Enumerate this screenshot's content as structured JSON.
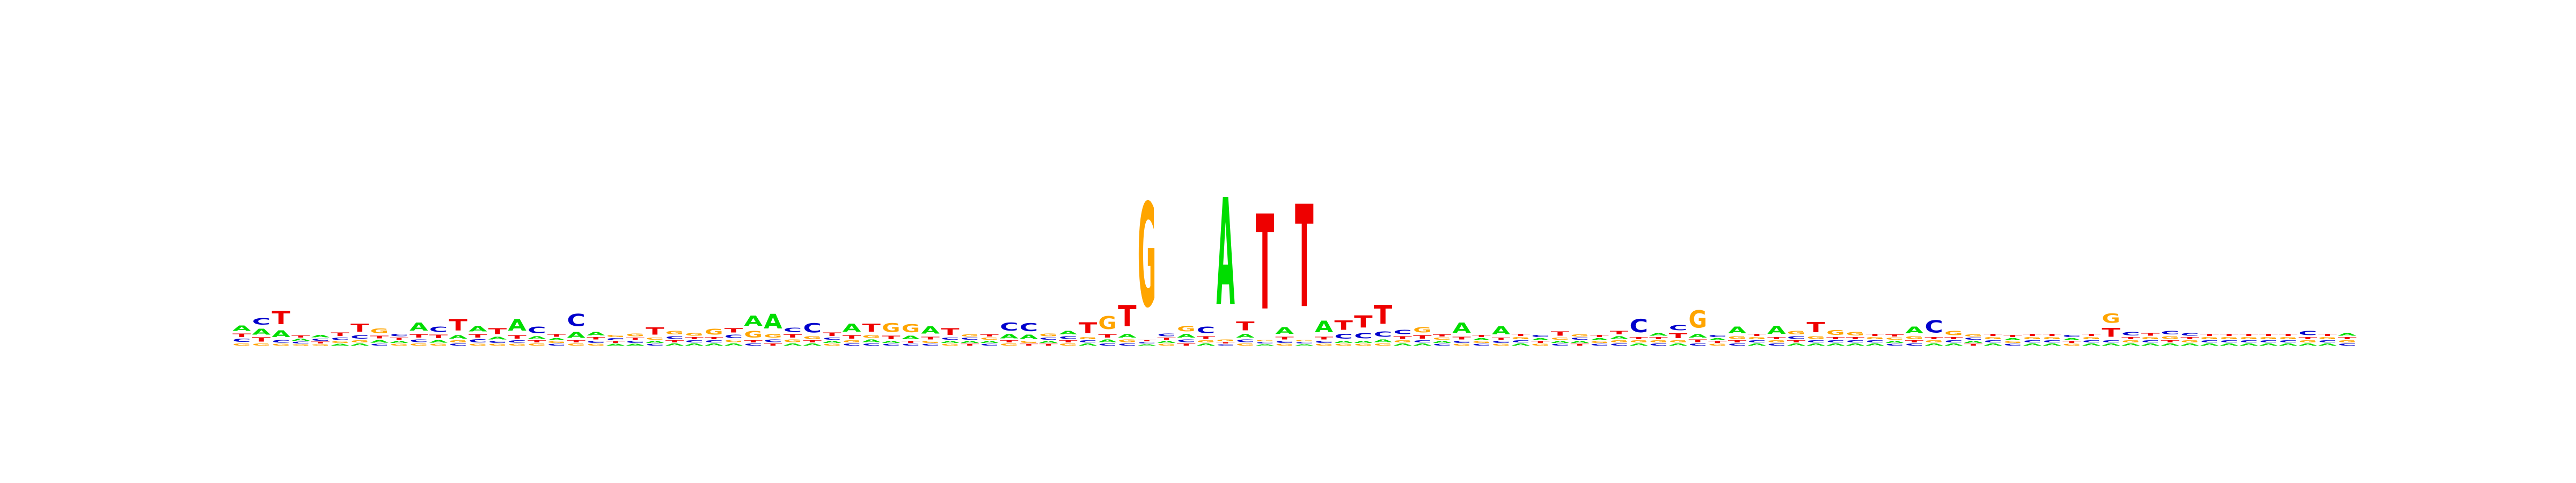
{
  "chart_data": {
    "type": "sequence-logo",
    "title": "",
    "xlabel": "",
    "ylabel": "",
    "colors": {
      "A": "#00dd00",
      "C": "#0000cc",
      "G": "#ffa500",
      "T": "#ee0000"
    },
    "positions": [
      {
        "A": 0.16,
        "C": 0.09,
        "G": 0.06,
        "T": 0.1
      },
      {
        "A": 0.18,
        "C": 0.2,
        "G": 0.06,
        "T": 0.12
      },
      {
        "A": 0.2,
        "C": 0.08,
        "G": 0.05,
        "T": 0.4
      },
      {
        "A": 0.06,
        "C": 0.05,
        "G": 0.04,
        "T": 0.06
      },
      {
        "A": 0.07,
        "C": 0.06,
        "G": 0.04,
        "T": 0.05
      },
      {
        "A": 0.05,
        "C": 0.07,
        "G": 0.05,
        "T": 0.1
      },
      {
        "A": 0.06,
        "C": 0.1,
        "G": 0.06,
        "T": 0.24
      },
      {
        "A": 0.08,
        "C": 0.05,
        "G": 0.14,
        "T": 0.08
      },
      {
        "A": 0.06,
        "C": 0.07,
        "G": 0.05,
        "T": 0.06
      },
      {
        "A": 0.24,
        "C": 0.08,
        "G": 0.06,
        "T": 0.1
      },
      {
        "A": 0.08,
        "C": 0.16,
        "G": 0.05,
        "T": 0.1
      },
      {
        "A": 0.1,
        "C": 0.06,
        "G": 0.06,
        "T": 0.34
      },
      {
        "A": 0.16,
        "C": 0.09,
        "G": 0.05,
        "T": 0.1
      },
      {
        "A": 0.08,
        "C": 0.06,
        "G": 0.05,
        "T": 0.18
      },
      {
        "A": 0.34,
        "C": 0.07,
        "G": 0.05,
        "T": 0.1
      },
      {
        "A": 0.08,
        "C": 0.2,
        "G": 0.06,
        "T": 0.06
      },
      {
        "A": 0.06,
        "C": 0.05,
        "G": 0.05,
        "T": 0.08
      },
      {
        "A": 0.18,
        "C": 0.36,
        "G": 0.06,
        "T": 0.06
      },
      {
        "A": 0.1,
        "C": 0.06,
        "G": 0.05,
        "T": 0.07
      },
      {
        "A": 0.05,
        "C": 0.06,
        "G": 0.06,
        "T": 0.05
      },
      {
        "A": 0.05,
        "C": 0.06,
        "G": 0.08,
        "T": 0.06
      },
      {
        "A": 0.06,
        "C": 0.05,
        "G": 0.06,
        "T": 0.22
      },
      {
        "A": 0.06,
        "C": 0.08,
        "G": 0.1,
        "T": 0.06
      },
      {
        "A": 0.06,
        "C": 0.06,
        "G": 0.08,
        "T": 0.06
      },
      {
        "A": 0.06,
        "C": 0.06,
        "G": 0.18,
        "T": 0.06
      },
      {
        "A": 0.06,
        "C": 0.1,
        "G": 0.07,
        "T": 0.12
      },
      {
        "A": 0.3,
        "C": 0.06,
        "G": 0.2,
        "T": 0.06
      },
      {
        "A": 0.44,
        "C": 0.08,
        "G": 0.1,
        "T": 0.06
      },
      {
        "A": 0.06,
        "C": 0.12,
        "G": 0.08,
        "T": 0.1
      },
      {
        "A": 0.06,
        "C": 0.28,
        "G": 0.08,
        "T": 0.06
      },
      {
        "A": 0.06,
        "C": 0.06,
        "G": 0.05,
        "T": 0.1
      },
      {
        "A": 0.24,
        "C": 0.06,
        "G": 0.06,
        "T": 0.1
      },
      {
        "A": 0.08,
        "C": 0.06,
        "G": 0.08,
        "T": 0.24
      },
      {
        "A": 0.06,
        "C": 0.05,
        "G": 0.26,
        "T": 0.1
      },
      {
        "A": 0.1,
        "C": 0.05,
        "G": 0.24,
        "T": 0.06
      },
      {
        "A": 0.22,
        "C": 0.05,
        "G": 0.06,
        "T": 0.08
      },
      {
        "A": 0.06,
        "C": 0.06,
        "G": 0.05,
        "T": 0.2
      },
      {
        "A": 0.06,
        "C": 0.06,
        "G": 0.06,
        "T": 0.05
      },
      {
        "A": 0.06,
        "C": 0.05,
        "G": 0.06,
        "T": 0.06
      },
      {
        "A": 0.12,
        "C": 0.24,
        "G": 0.06,
        "T": 0.06
      },
      {
        "A": 0.12,
        "C": 0.24,
        "G": 0.06,
        "T": 0.05
      },
      {
        "A": 0.06,
        "C": 0.06,
        "G": 0.08,
        "T": 0.05
      },
      {
        "A": 0.1,
        "C": 0.08,
        "G": 0.06,
        "T": 0.06
      },
      {
        "A": 0.06,
        "C": 0.06,
        "G": 0.06,
        "T": 0.32
      },
      {
        "A": 0.08,
        "C": 0.06,
        "G": 0.38,
        "T": 0.1
      },
      {
        "A": 0.1,
        "C": 0.06,
        "G": 0.08,
        "T": 0.64
      },
      {
        "A": 0.04,
        "C": 0.04,
        "G": 3.1,
        "T": 0.04
      },
      {
        "A": 0.06,
        "C": 0.08,
        "G": 0.05,
        "T": 0.06
      },
      {
        "A": 0.1,
        "C": 0.08,
        "G": 0.16,
        "T": 0.06
      },
      {
        "A": 0.06,
        "C": 0.2,
        "G": 0.06,
        "T": 0.08
      },
      {
        "A": 3.2,
        "C": 0.04,
        "G": 0.05,
        "T": 0.04
      },
      {
        "A": 0.1,
        "C": 0.08,
        "G": 0.06,
        "T": 0.26
      },
      {
        "A": 0.04,
        "C": 0.04,
        "G": 0.04,
        "T": 2.84
      },
      {
        "A": 0.2,
        "C": 0.06,
        "G": 0.05,
        "T": 0.08
      },
      {
        "A": 0.04,
        "C": 0.04,
        "G": 0.04,
        "T": 3.06
      },
      {
        "A": 0.34,
        "C": 0.06,
        "G": 0.05,
        "T": 0.08
      },
      {
        "A": 0.06,
        "C": 0.14,
        "G": 0.05,
        "T": 0.28
      },
      {
        "A": 0.06,
        "C": 0.16,
        "G": 0.05,
        "T": 0.36
      },
      {
        "A": 0.08,
        "C": 0.16,
        "G": 0.06,
        "T": 0.56
      },
      {
        "A": 0.06,
        "C": 0.12,
        "G": 0.06,
        "T": 0.08
      },
      {
        "A": 0.06,
        "C": 0.06,
        "G": 0.16,
        "T": 0.1
      },
      {
        "A": 0.06,
        "C": 0.05,
        "G": 0.06,
        "T": 0.06
      },
      {
        "A": 0.3,
        "C": 0.06,
        "G": 0.05,
        "T": 0.08
      },
      {
        "A": 0.06,
        "C": 0.05,
        "G": 0.05,
        "T": 0.06
      },
      {
        "A": 0.24,
        "C": 0.06,
        "G": 0.05,
        "T": 0.06
      },
      {
        "A": 0.06,
        "C": 0.06,
        "G": 0.06,
        "T": 0.06
      },
      {
        "A": 0.06,
        "C": 0.06,
        "G": 0.05,
        "T": 0.05
      },
      {
        "A": 0.06,
        "C": 0.05,
        "G": 0.06,
        "T": 0.12
      },
      {
        "A": 0.06,
        "C": 0.06,
        "G": 0.06,
        "T": 0.05
      },
      {
        "A": 0.06,
        "C": 0.05,
        "G": 0.05,
        "T": 0.06
      },
      {
        "A": 0.08,
        "C": 0.06,
        "G": 0.06,
        "T": 0.1
      },
      {
        "A": 0.06,
        "C": 0.4,
        "G": 0.06,
        "T": 0.06
      },
      {
        "A": 0.08,
        "C": 0.06,
        "G": 0.06,
        "T": 0.06
      },
      {
        "A": 0.06,
        "C": 0.16,
        "G": 0.06,
        "T": 0.14
      },
      {
        "A": 0.1,
        "C": 0.06,
        "G": 0.52,
        "T": 0.08
      },
      {
        "A": 0.06,
        "C": 0.06,
        "G": 0.05,
        "T": 0.05
      },
      {
        "A": 0.2,
        "C": 0.06,
        "G": 0.08,
        "T": 0.06
      },
      {
        "A": 0.06,
        "C": 0.06,
        "G": 0.06,
        "T": 0.06
      },
      {
        "A": 0.24,
        "C": 0.06,
        "G": 0.06,
        "T": 0.06
      },
      {
        "A": 0.06,
        "C": 0.08,
        "G": 0.1,
        "T": 0.06
      },
      {
        "A": 0.06,
        "C": 0.06,
        "G": 0.08,
        "T": 0.3
      },
      {
        "A": 0.06,
        "C": 0.06,
        "G": 0.14,
        "T": 0.06
      },
      {
        "A": 0.06,
        "C": 0.06,
        "G": 0.1,
        "T": 0.06
      },
      {
        "A": 0.06,
        "C": 0.06,
        "G": 0.06,
        "T": 0.06
      },
      {
        "A": 0.06,
        "C": 0.05,
        "G": 0.06,
        "T": 0.06
      },
      {
        "A": 0.2,
        "C": 0.06,
        "G": 0.08,
        "T": 0.06
      },
      {
        "A": 0.06,
        "C": 0.36,
        "G": 0.06,
        "T": 0.06
      },
      {
        "A": 0.06,
        "C": 0.06,
        "G": 0.12,
        "T": 0.06
      },
      {
        "A": 0.06,
        "C": 0.06,
        "G": 0.06,
        "T": 0.05
      },
      {
        "A": 0.06,
        "C": 0.06,
        "G": 0.06,
        "T": 0.06
      },
      {
        "A": 0.06,
        "C": 0.05,
        "G": 0.05,
        "T": 0.06
      },
      {
        "A": 0.06,
        "C": 0.06,
        "G": 0.06,
        "T": 0.06
      },
      {
        "A": 0.06,
        "C": 0.06,
        "G": 0.06,
        "T": 0.06
      },
      {
        "A": 0.06,
        "C": 0.06,
        "G": 0.05,
        "T": 0.05
      },
      {
        "A": 0.06,
        "C": 0.06,
        "G": 0.06,
        "T": 0.06
      },
      {
        "A": 0.06,
        "C": 0.06,
        "G": 0.28,
        "T": 0.26
      },
      {
        "A": 0.06,
        "C": 0.1,
        "G": 0.06,
        "T": 0.06
      },
      {
        "A": 0.06,
        "C": 0.06,
        "G": 0.06,
        "T": 0.08
      },
      {
        "A": 0.06,
        "C": 0.1,
        "G": 0.08,
        "T": 0.06
      },
      {
        "A": 0.06,
        "C": 0.08,
        "G": 0.06,
        "T": 0.06
      },
      {
        "A": 0.06,
        "C": 0.06,
        "G": 0.06,
        "T": 0.06
      },
      {
        "A": 0.06,
        "C": 0.06,
        "G": 0.06,
        "T": 0.06
      },
      {
        "A": 0.06,
        "C": 0.06,
        "G": 0.06,
        "T": 0.06
      },
      {
        "A": 0.06,
        "C": 0.06,
        "G": 0.06,
        "T": 0.06
      },
      {
        "A": 0.06,
        "C": 0.06,
        "G": 0.06,
        "T": 0.06
      },
      {
        "A": 0.06,
        "C": 0.12,
        "G": 0.06,
        "T": 0.06
      },
      {
        "A": 0.06,
        "C": 0.06,
        "G": 0.06,
        "T": 0.06
      },
      {
        "A": 0.08,
        "C": 0.06,
        "G": 0.06,
        "T": 0.06
      }
    ]
  }
}
